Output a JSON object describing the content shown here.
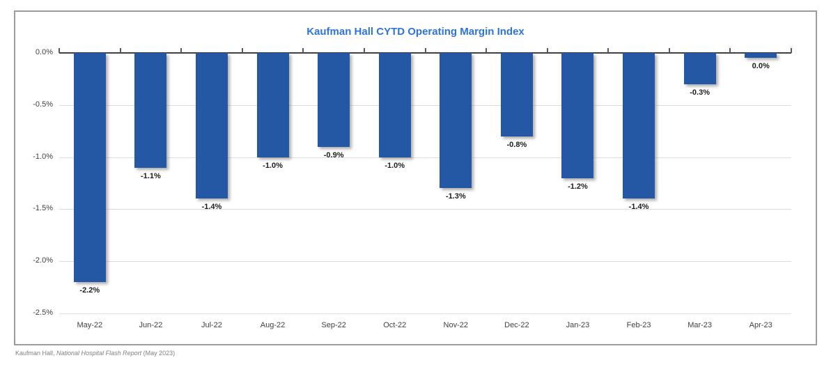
{
  "chart_data": {
    "type": "bar",
    "title": "Kaufman Hall CYTD Operating Margin Index",
    "categories": [
      "May-22",
      "Jun-22",
      "Jul-22",
      "Aug-22",
      "Sep-22",
      "Oct-22",
      "Nov-22",
      "Dec-22",
      "Jan-23",
      "Feb-23",
      "Mar-23",
      "Apr-23"
    ],
    "values": [
      -2.2,
      -1.1,
      -1.4,
      -1.0,
      -0.9,
      -1.0,
      -1.3,
      -0.8,
      -1.2,
      -1.4,
      -0.3,
      0.0
    ],
    "data_labels": [
      "-2.2%",
      "-1.1%",
      "-1.4%",
      "-1.0%",
      "-0.9%",
      "-1.0%",
      "-1.3%",
      "-0.8%",
      "-1.2%",
      "-1.4%",
      "-0.3%",
      "0.0%"
    ],
    "xlabel": "",
    "ylabel": "",
    "ylim": [
      -2.5,
      0.0
    ],
    "y_ticks": [
      "0.0%",
      "-0.5%",
      "-1.0%",
      "-1.5%",
      "-2.0%",
      "-2.5%"
    ],
    "grid": "horizontal",
    "legend_position": "none",
    "bar_color": "#2458a5",
    "title_color": "#2e74db",
    "axis_line_color": "#404040",
    "gridline_color": "#dcdcdc"
  },
  "footer": {
    "prefix": "Kaufman Hall, ",
    "report": "National Hospital Flash Report",
    "suffix": " (May 2023)"
  }
}
